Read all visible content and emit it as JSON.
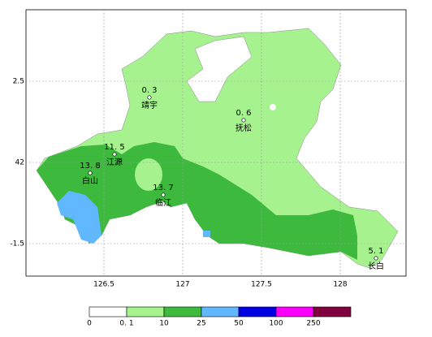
{
  "map": {
    "y_labels": [
      "2.5",
      "42",
      "-1.5"
    ],
    "x_labels": [
      "126.5",
      "127",
      "127.5",
      "128"
    ],
    "stations": [
      {
        "value": "0. 3",
        "name": "靖宇"
      },
      {
        "value": "0. 6",
        "name": "抚松"
      },
      {
        "value": "11. 5",
        "name": "江源"
      },
      {
        "value": "13. 8",
        "name": "白山"
      },
      {
        "value": "13. 7",
        "name": "临江"
      },
      {
        "value": "5. 1",
        "name": "长白"
      }
    ],
    "legend": {
      "labels": [
        "0",
        "0. 1",
        "10",
        "25",
        "50",
        "100",
        "250"
      ],
      "colors": [
        "#ffffff",
        "#a6f28f",
        "#3dba3d",
        "#61b8ff",
        "#0000e1",
        "#fa00fa",
        "#800040"
      ]
    }
  }
}
